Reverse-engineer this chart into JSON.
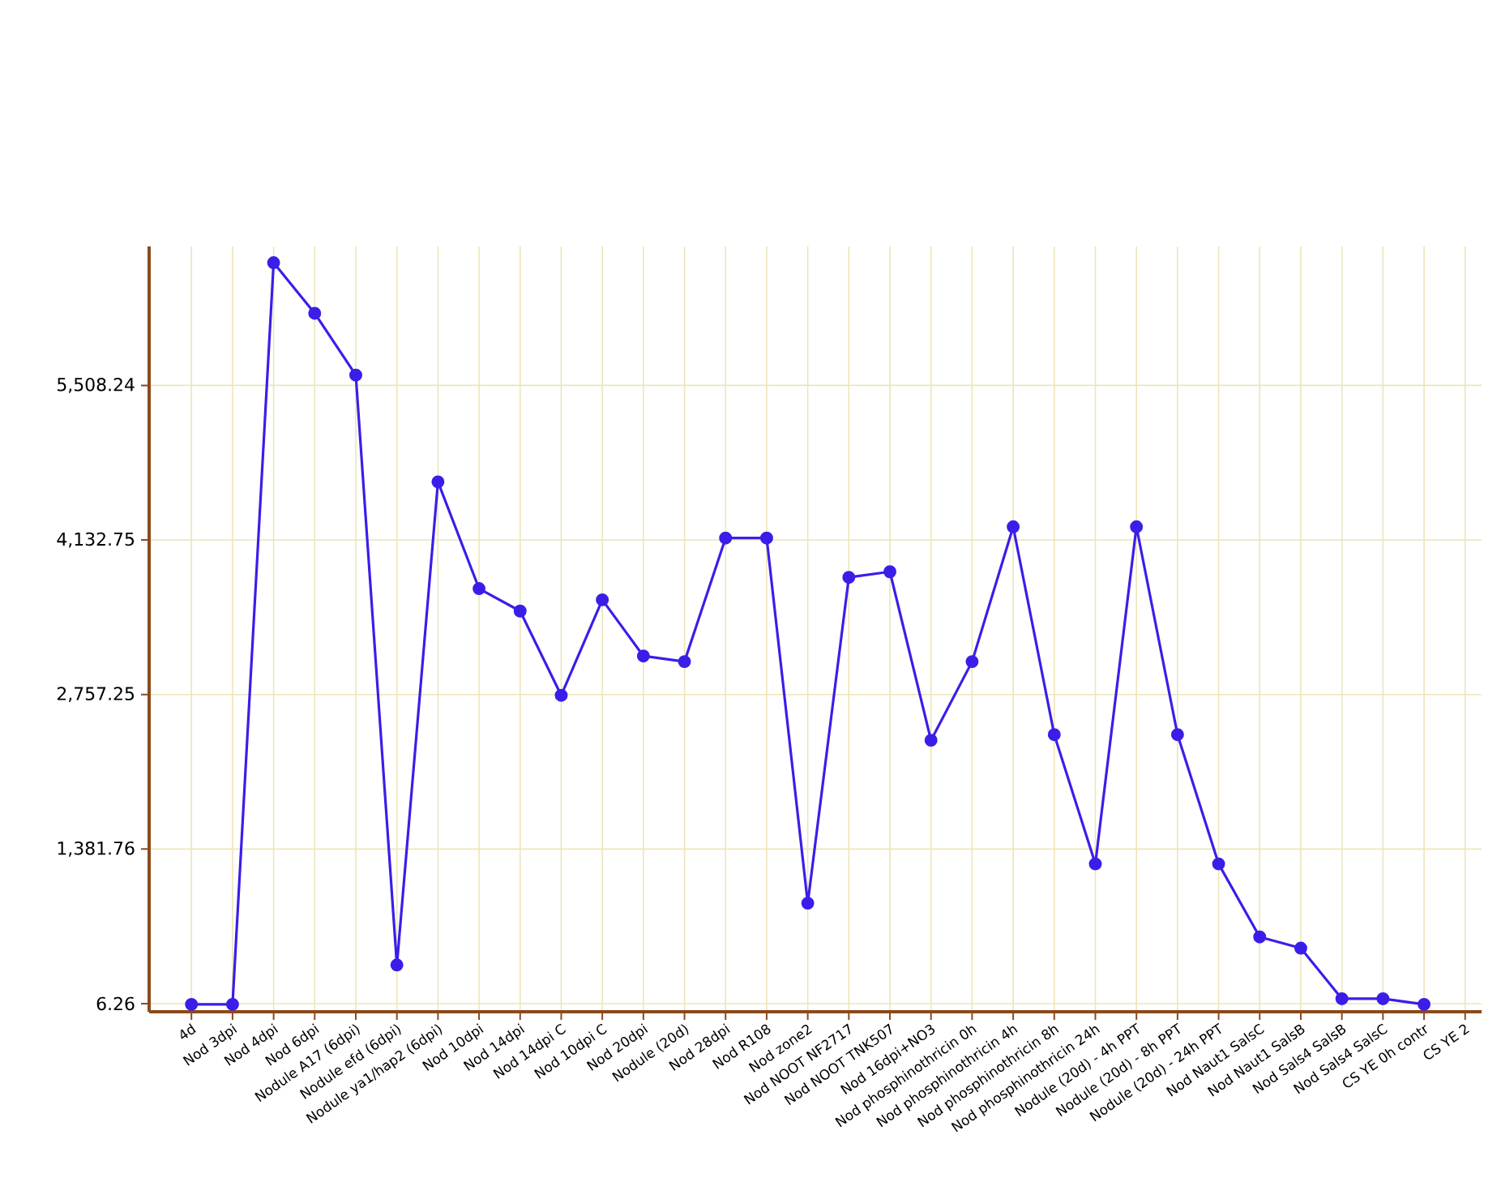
{
  "chart_data": {
    "type": "line",
    "categories": [
      "4d",
      "Nod 3dpi",
      "Nod 4dpi",
      "Nod 6dpi",
      "Nodule A17 (6dpi)",
      "Nodule efd (6dpi)",
      "Nodule ya1/hap2 (6dpi)",
      "Nod 10dpi",
      "Nod 14dpi",
      "Nod 14dpi C",
      "Nod 10dpi C",
      "Nod 20dpi",
      "Nodule (20d)",
      "Nod 28dpi",
      "Nod R108",
      "Nod zone2",
      "Nod NOOT NF2717",
      "Nod NOOT TNK507",
      "Nod 16dpi+NO3",
      "Nod phosphinothricin 0h",
      "Nod phosphinothricin 4h",
      "Nod phosphinothricin 8h",
      "Nod phosphinothricin 24h",
      "Nodule (20d) - 4h PPT",
      "Nodule (20d) - 8h PPT",
      "Nodule (20d) - 24h PPT",
      "Nod Naut1 SalsC",
      "Nod Naut1 SalsB",
      "Nod Sals4 SalsB",
      "Nod Sals4 SalsC",
      "CS YE 0h contr",
      "CS YE 2"
    ],
    "series": [
      {
        "color": "#3a1ee8",
        "values": [
          0,
          0,
          6600,
          6150,
          5600,
          350,
          4650,
          3700,
          3500,
          2750,
          3600,
          3100,
          3050,
          4150,
          4150,
          900,
          3800,
          3850,
          2350,
          3050,
          4250,
          2400,
          1250,
          4250,
          2400,
          1250,
          600,
          500,
          50,
          50,
          0,
          null
        ]
      }
    ],
    "ylim": [
      -66,
      6745
    ],
    "yticks": [
      {
        "value": 6.26,
        "label": "6.26"
      },
      {
        "value": 1381.76,
        "label": "1,381.76"
      },
      {
        "value": 2757.25,
        "label": "2,757.25"
      },
      {
        "value": 4132.75,
        "label": "4,132.75"
      },
      {
        "value": 5508.24,
        "label": "5,508.24"
      }
    ],
    "grid": true,
    "marker": "circle",
    "line_style": "solid"
  }
}
